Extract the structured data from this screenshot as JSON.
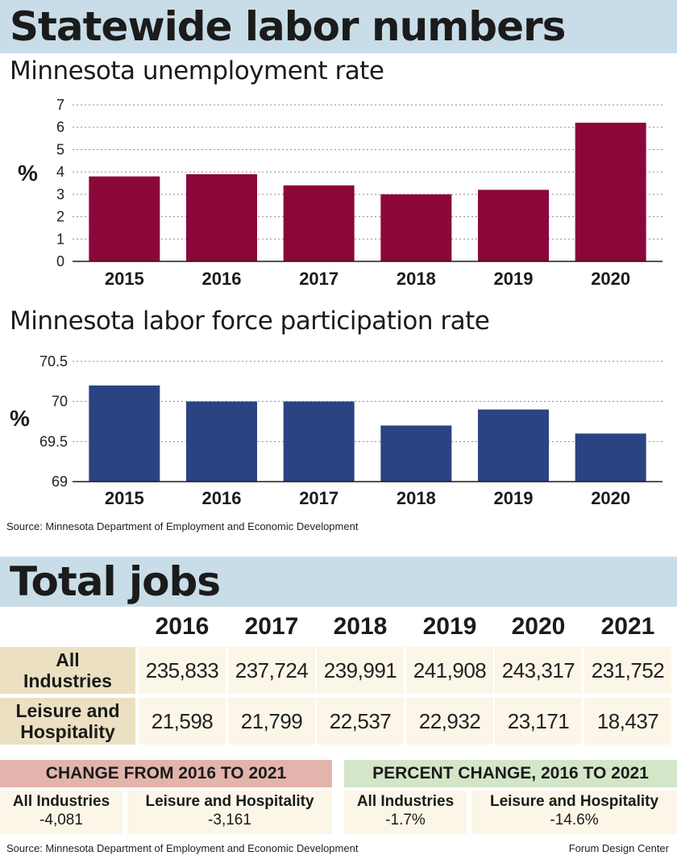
{
  "header": {
    "title": "Statewide labor numbers"
  },
  "unemployment": {
    "title": "Minnesota unemployment rate"
  },
  "participation": {
    "title": "Minnesota labor force participation rate"
  },
  "source_note": "Source: Minnesota Department of Employment and Economic Development",
  "jobs": {
    "title": "Total jobs",
    "years": [
      "2016",
      "2017",
      "2018",
      "2019",
      "2020",
      "2021"
    ],
    "rows": [
      {
        "label": "All Industries",
        "values": [
          "235,833",
          "237,724",
          "239,991",
          "241,908",
          "243,317",
          "231,752"
        ]
      },
      {
        "label": "Leisure and Hospitality",
        "values": [
          "21,598",
          "21,799",
          "22,537",
          "22,932",
          "23,171",
          "18,437"
        ]
      }
    ]
  },
  "change": {
    "title": "CHANGE FROM 2016 TO 2021",
    "all_label": "All Industries",
    "all_value": "-4,081",
    "lh_label": "Leisure and Hospitality",
    "lh_value": "-3,161"
  },
  "percent": {
    "title": "PERCENT CHANGE, 2016 TO 2021",
    "all_label": "All Industries",
    "all_value": "-1.7%",
    "lh_label": "Leisure and Hospitality",
    "lh_value": "-14.6%"
  },
  "credit": "Forum Design Center",
  "colors": {
    "banner": "#c9dde8",
    "unemployment_bar": "#8b073a",
    "participation_bar": "#2b4381",
    "label_bg": "#ebe0c2",
    "cell_bg": "#fcf6e8",
    "change_head": "#e3b4ab",
    "percent_head": "#d4e6c8"
  },
  "chart_data": [
    {
      "type": "bar",
      "title": "Minnesota unemployment rate",
      "ylabel": "%",
      "categories": [
        "2015",
        "2016",
        "2017",
        "2018",
        "2019",
        "2020"
      ],
      "values": [
        3.8,
        3.9,
        3.4,
        3.0,
        3.2,
        6.2
      ],
      "ylim": [
        0,
        7
      ],
      "yticks": [
        "0",
        "1",
        "2",
        "3",
        "4",
        "5",
        "6",
        "7"
      ],
      "grid": true
    },
    {
      "type": "bar",
      "title": "Minnesota labor force participation rate",
      "ylabel": "%",
      "categories": [
        "2015",
        "2016",
        "2017",
        "2018",
        "2019",
        "2020"
      ],
      "values": [
        70.2,
        70.0,
        70.0,
        69.7,
        69.9,
        69.6
      ],
      "ylim": [
        69,
        70.5
      ],
      "yticks": [
        "69",
        "69.5",
        "70",
        "70.5"
      ],
      "grid": true
    }
  ]
}
